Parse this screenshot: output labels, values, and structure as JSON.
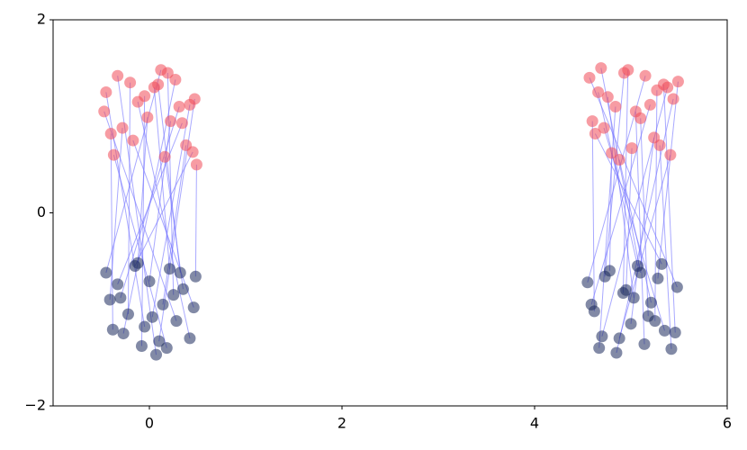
{
  "chart_data": {
    "type": "scatter",
    "xlim": [
      -1,
      6
    ],
    "xticks": [
      0,
      2,
      4,
      6
    ],
    "ylim": [
      -2,
      2
    ],
    "yticks": [
      {
        "value": -2,
        "label": "−2"
      },
      0,
      2
    ],
    "link_color": "#6f6fff",
    "series": [
      {
        "color": "#1b2a5c",
        "x": [
          -0.45,
          -0.38,
          -0.3,
          -0.22,
          -0.15,
          -0.08,
          0.0,
          0.07,
          0.14,
          0.21,
          0.28,
          0.35,
          0.42,
          0.48,
          -0.41,
          -0.27,
          -0.12,
          0.03,
          0.18,
          0.32,
          0.46,
          -0.33,
          -0.05,
          0.25,
          0.1,
          4.55,
          4.62,
          4.7,
          4.78,
          4.85,
          4.92,
          5.0,
          5.07,
          5.14,
          5.21,
          5.28,
          5.35,
          5.42,
          5.48,
          4.59,
          4.73,
          4.88,
          5.03,
          5.18,
          5.32,
          5.46,
          4.67,
          4.95,
          5.25,
          5.1
        ],
        "y": [
          -0.62,
          -1.21,
          -0.88,
          -1.05,
          -0.55,
          -1.38,
          -0.71,
          -1.47,
          -0.95,
          -0.58,
          -1.12,
          -0.79,
          -1.3,
          -0.66,
          -0.9,
          -1.25,
          -0.52,
          -1.08,
          -1.4,
          -0.62,
          -0.98,
          -0.74,
          -1.18,
          -0.85,
          -1.33,
          -0.72,
          -1.02,
          -1.28,
          -0.6,
          -1.45,
          -0.83,
          -1.15,
          -0.55,
          -1.36,
          -0.93,
          -0.68,
          -1.22,
          -1.41,
          -0.77,
          -0.95,
          -0.66,
          -1.3,
          -0.88,
          -1.07,
          -0.53,
          -1.24,
          -1.4,
          -0.8,
          -1.12,
          -0.62
        ]
      },
      {
        "color": "#f04a58",
        "x": [
          0.12,
          -0.4,
          0.31,
          -0.2,
          0.45,
          -0.05,
          0.22,
          -0.33,
          0.38,
          0.05,
          -0.47,
          0.16,
          -0.12,
          0.49,
          -0.28,
          0.27,
          -0.02,
          0.42,
          -0.37,
          0.09,
          -0.17,
          0.34,
          -0.45,
          0.19,
          0.47,
          5.15,
          4.6,
          5.38,
          4.8,
          5.44,
          4.97,
          5.24,
          4.66,
          5.05,
          4.88,
          5.49,
          4.72,
          5.3,
          4.57,
          5.2,
          4.93,
          5.41,
          4.76,
          5.1,
          4.63,
          5.34,
          4.84,
          5.01,
          5.27,
          4.69
        ],
        "y": [
          1.48,
          0.82,
          1.1,
          1.35,
          0.63,
          1.21,
          0.95,
          1.42,
          0.7,
          1.3,
          1.05,
          0.58,
          1.15,
          0.5,
          0.88,
          1.38,
          0.99,
          1.12,
          0.6,
          1.33,
          0.75,
          0.93,
          1.25,
          1.45,
          1.18,
          1.42,
          0.95,
          1.3,
          0.62,
          1.18,
          1.48,
          0.78,
          1.25,
          1.05,
          0.55,
          1.36,
          0.88,
          0.7,
          1.4,
          1.12,
          1.45,
          0.6,
          1.2,
          0.98,
          0.82,
          1.33,
          1.1,
          0.67,
          1.27,
          1.5
        ]
      }
    ]
  }
}
